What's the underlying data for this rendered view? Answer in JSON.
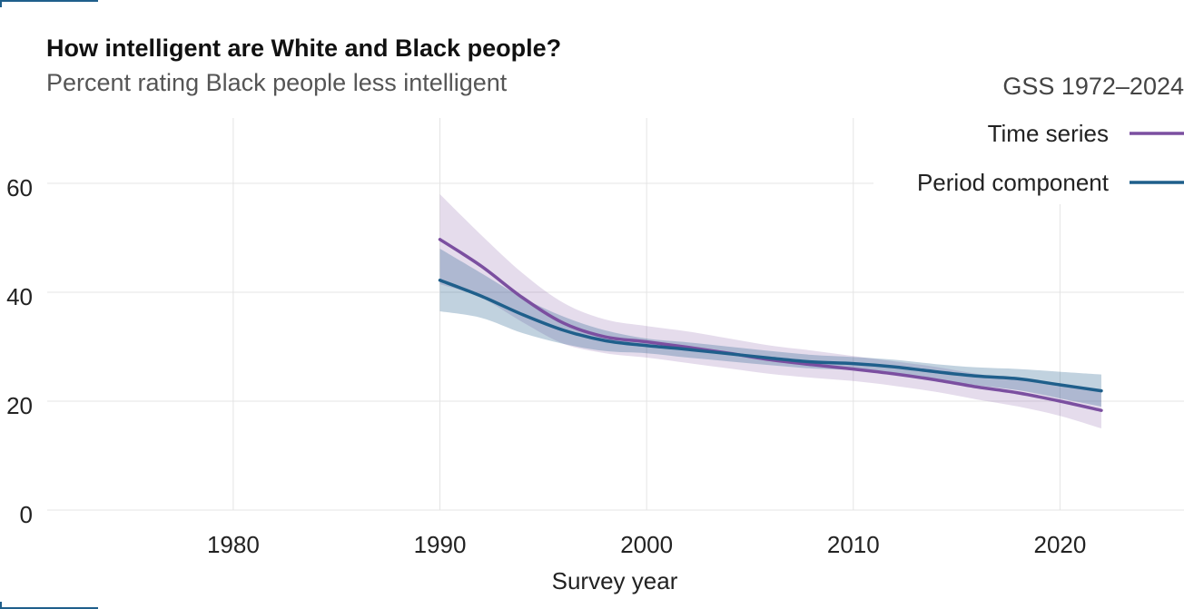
{
  "header": {
    "title": "How intelligent are White and Black people?",
    "subtitle": "Percent rating Black people less intelligent",
    "source": "GSS 1972–2024"
  },
  "colors": {
    "time_series": "#7b4fa0",
    "period_component": "#1f5f8b",
    "grid": "#e4e4e4"
  },
  "chart_data": {
    "type": "line",
    "title": "How intelligent are White and Black people?",
    "subtitle": "Percent rating Black people less intelligent",
    "xlabel": "Survey year",
    "ylabel": "",
    "xlim": [
      1971,
      2026
    ],
    "ylim": [
      0,
      72
    ],
    "x_ticks": [
      1980,
      1990,
      2000,
      2010,
      2020
    ],
    "y_ticks": [
      0,
      20,
      40,
      60
    ],
    "grid": true,
    "legend_position": "top-right",
    "series": [
      {
        "name": "Time series",
        "color": "#7b4fa0",
        "x": [
          1990,
          1992,
          1994,
          1996,
          1998,
          2000,
          2002,
          2004,
          2006,
          2008,
          2010,
          2012,
          2014,
          2016,
          2018,
          2020,
          2022
        ],
        "y": [
          49.7,
          44.8,
          39.0,
          34.3,
          31.8,
          30.9,
          29.9,
          28.8,
          27.6,
          26.7,
          25.9,
          25.0,
          23.9,
          22.6,
          21.5,
          20.0,
          18.3
        ],
        "lower": [
          41.5,
          39.0,
          34.5,
          30.5,
          28.8,
          28.0,
          27.0,
          26.0,
          25.0,
          24.3,
          23.7,
          22.8,
          21.7,
          20.3,
          19.0,
          17.3,
          15.0
        ],
        "upper": [
          58.0,
          50.5,
          43.5,
          38.0,
          35.0,
          33.8,
          32.8,
          31.5,
          30.2,
          29.3,
          28.3,
          27.3,
          26.3,
          25.0,
          24.0,
          22.7,
          21.7
        ]
      },
      {
        "name": "Period component",
        "color": "#1f5f8b",
        "x": [
          1990,
          1992,
          1994,
          1996,
          1998,
          2000,
          2002,
          2004,
          2006,
          2008,
          2010,
          2012,
          2014,
          2016,
          2018,
          2020,
          2022
        ],
        "y": [
          42.2,
          39.3,
          35.9,
          33.0,
          31.1,
          30.2,
          29.5,
          28.7,
          27.9,
          27.2,
          26.9,
          26.3,
          25.4,
          24.6,
          24.1,
          23.0,
          21.9
        ],
        "lower": [
          36.5,
          35.3,
          32.5,
          30.5,
          29.2,
          28.8,
          28.0,
          27.3,
          26.6,
          26.0,
          25.7,
          25.0,
          24.0,
          22.9,
          22.0,
          20.5,
          19.0
        ],
        "upper": [
          48.0,
          43.5,
          39.0,
          35.5,
          33.0,
          31.5,
          30.8,
          30.0,
          29.2,
          28.5,
          28.1,
          27.6,
          26.8,
          26.2,
          25.9,
          25.4,
          24.9
        ]
      }
    ]
  }
}
